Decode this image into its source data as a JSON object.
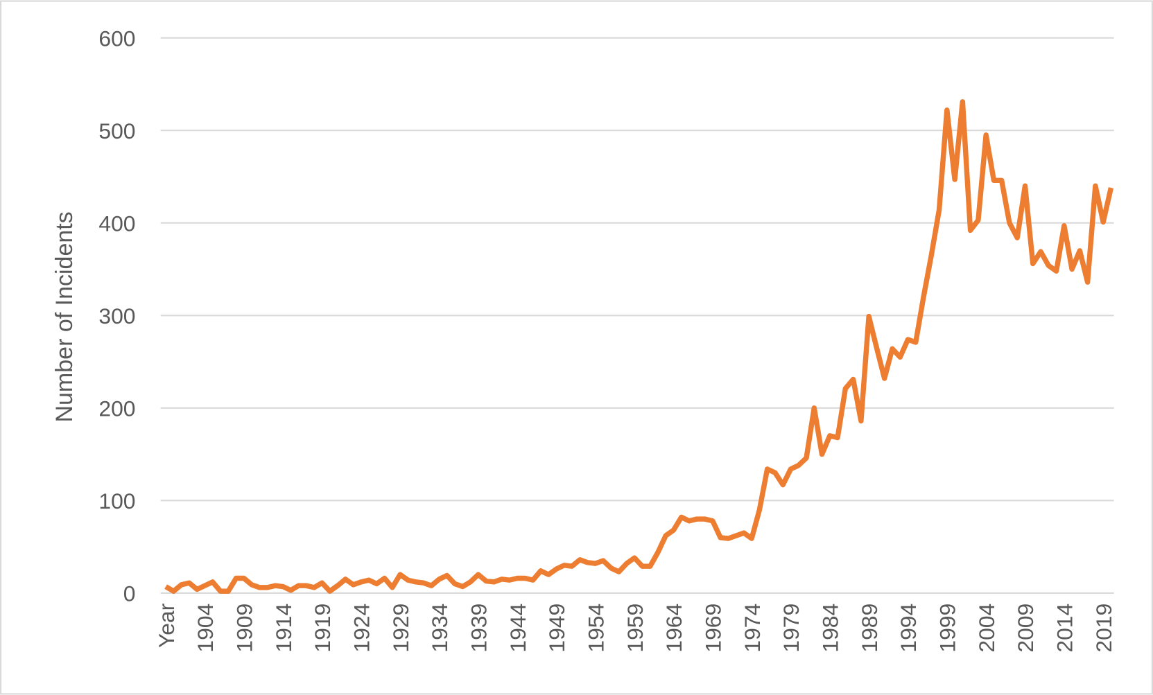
{
  "chart_data": {
    "type": "line",
    "y_label": "Number of Incidents",
    "categories": [
      "Year",
      null,
      null,
      null,
      null,
      "1904",
      null,
      null,
      null,
      null,
      "1909",
      null,
      null,
      null,
      null,
      "1914",
      null,
      null,
      null,
      null,
      "1919",
      null,
      null,
      null,
      null,
      "1924",
      null,
      null,
      null,
      null,
      "1929",
      null,
      null,
      null,
      null,
      "1934",
      null,
      null,
      null,
      null,
      "1939",
      null,
      null,
      null,
      null,
      "1944",
      null,
      null,
      null,
      null,
      "1949",
      null,
      null,
      null,
      null,
      "1954",
      null,
      null,
      null,
      null,
      "1959",
      null,
      null,
      null,
      null,
      "1964",
      null,
      null,
      null,
      null,
      "1969",
      null,
      null,
      null,
      null,
      "1974",
      null,
      null,
      null,
      null,
      "1979",
      null,
      null,
      null,
      null,
      "1984",
      null,
      null,
      null,
      null,
      "1989",
      null,
      null,
      null,
      null,
      "1994",
      null,
      null,
      null,
      null,
      "1999",
      null,
      null,
      null,
      null,
      "2004",
      null,
      null,
      null,
      null,
      "2009",
      null,
      null,
      null,
      null,
      "2014",
      null,
      null,
      null,
      null,
      "2019",
      null
    ],
    "series": [
      {
        "name": "Number of Incidents",
        "color": "#ed7d31",
        "values": [
          7,
          2,
          9,
          11,
          4,
          8,
          12,
          2,
          2,
          16,
          16,
          9,
          6,
          6,
          8,
          7,
          3,
          8,
          8,
          6,
          11,
          2,
          8,
          15,
          9,
          12,
          14,
          10,
          16,
          6,
          20,
          14,
          12,
          11,
          8,
          15,
          19,
          10,
          7,
          12,
          20,
          13,
          12,
          15,
          14,
          16,
          16,
          14,
          24,
          20,
          26,
          30,
          29,
          36,
          33,
          32,
          35,
          27,
          23,
          32,
          38,
          29,
          29,
          44,
          62,
          68,
          82,
          78,
          80,
          80,
          78,
          60,
          59,
          62,
          65,
          59,
          90,
          134,
          130,
          117,
          134,
          138,
          146,
          200,
          150,
          170,
          168,
          221,
          231,
          186,
          299,
          265,
          232,
          264,
          255,
          274,
          271,
          320,
          365,
          414,
          522,
          447,
          531,
          392,
          403,
          495,
          446,
          446,
          400,
          384,
          440,
          356,
          369,
          354,
          348,
          397,
          350,
          370,
          336,
          440,
          401,
          438
        ]
      }
    ],
    "ylim": [
      0,
      600
    ],
    "yticks": [
      0,
      100,
      200,
      300,
      400,
      500,
      600
    ],
    "grid": true
  }
}
